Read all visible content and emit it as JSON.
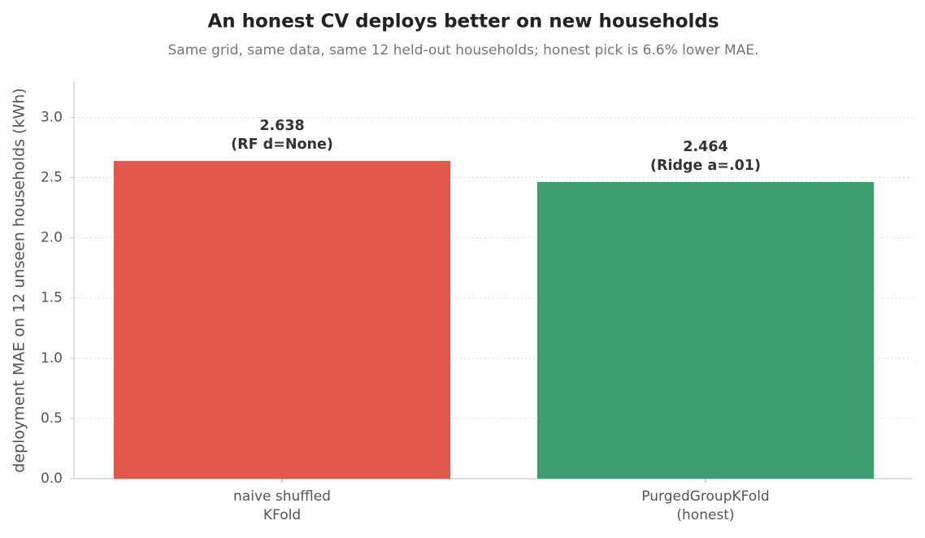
{
  "chart_data": {
    "type": "bar",
    "title": "An honest CV deploys better on new households",
    "subtitle": "Same grid, same data, same 12 held-out households; honest pick is 6.6% lower MAE.",
    "y_label": "deployment MAE on 12 unseen households (kWh)",
    "categories": [
      "naive shuffled\nKFold",
      "PurgedGroupKFold\n(honest)"
    ],
    "values": [
      2.638,
      2.464
    ],
    "value_labels": [
      "2.638\n(RF d=None)",
      "2.464\n(Ridge a=.01)"
    ],
    "colors": [
      "#e0574c",
      "#3c9e6f"
    ],
    "ylim": [
      0,
      3.3
    ],
    "yticks": [
      {
        "value": 0,
        "label": "0.0"
      },
      0.5,
      {
        "value": 1,
        "label": "1.0"
      },
      1.5,
      {
        "value": 2,
        "label": "2.0"
      },
      2.5,
      {
        "value": 3,
        "label": "3.0"
      }
    ],
    "grid": true
  }
}
